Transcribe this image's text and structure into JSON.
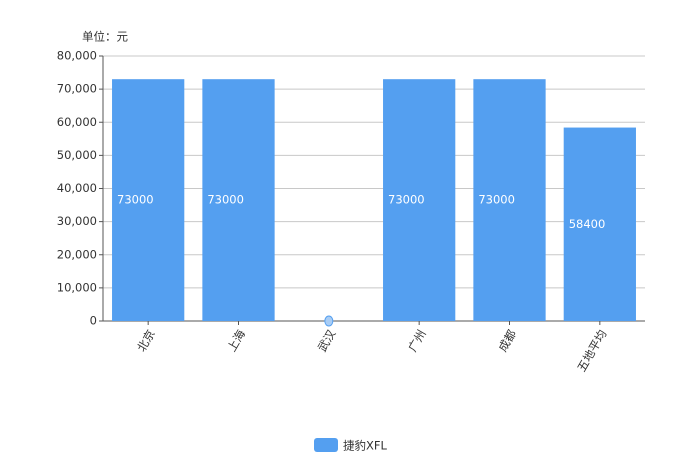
{
  "chart_data": {
    "type": "bar",
    "unit_label": "单位：元",
    "categories": [
      "北京",
      "上海",
      "武汉",
      "广州",
      "成都",
      "五地平均"
    ],
    "series": [
      {
        "name": "捷豹XFL",
        "color": "#549ff0",
        "values": [
          73000,
          73000,
          0,
          73000,
          73000,
          58400
        ]
      }
    ],
    "ylim": [
      0,
      80000
    ],
    "yticks": [
      0,
      {
        "value": 10000,
        "label": "10,000"
      },
      {
        "value": 20000,
        "label": "20,000"
      },
      {
        "value": 30000,
        "label": "30,000"
      },
      {
        "value": 40000,
        "label": "40,000"
      },
      {
        "value": 50000,
        "label": "50,000"
      },
      {
        "value": 60000,
        "label": "60,000"
      },
      {
        "value": 70000,
        "label": "70,000"
      },
      {
        "value": 80000,
        "label": "80,000"
      }
    ],
    "grid": true
  }
}
